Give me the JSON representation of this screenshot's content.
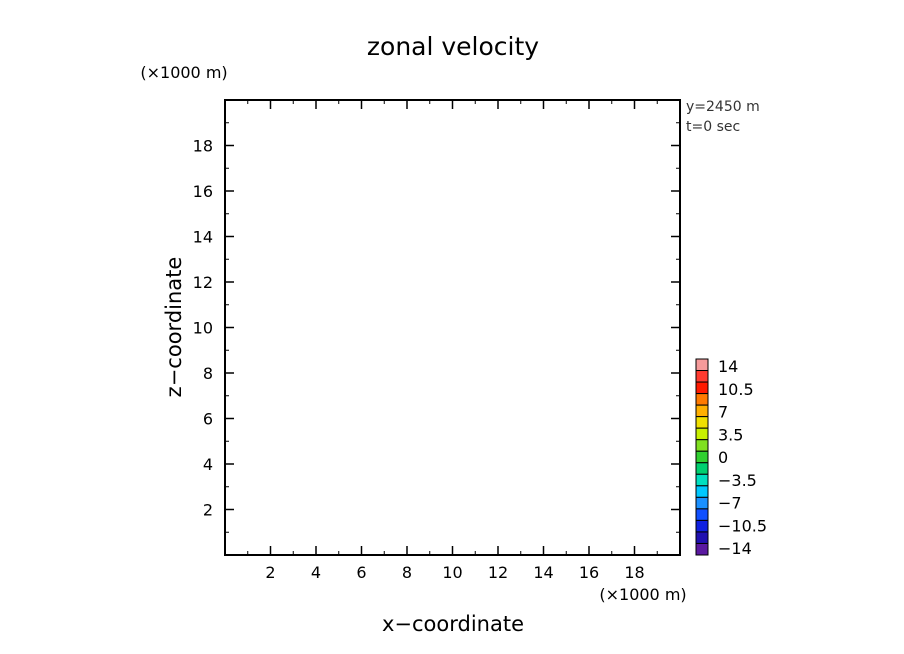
{
  "chart_data": {
    "type": "heatmap",
    "title": "zonal velocity",
    "xlabel": "x−coordinate",
    "ylabel": "z−coordinate",
    "x_unit": "(×1000 m)",
    "y_unit": "(×1000 m)",
    "xlim": [
      0,
      20
    ],
    "ylim": [
      0,
      20
    ],
    "xticks": [
      2,
      4,
      6,
      8,
      10,
      12,
      14,
      16,
      18
    ],
    "yticks": [
      2,
      4,
      6,
      8,
      10,
      12,
      14,
      16,
      18
    ],
    "annotations": [
      "y=2450 m",
      "t=0 sec"
    ],
    "field_values": [],
    "colorbar": {
      "labels": [
        "14",
        "10.5",
        "7",
        "3.5",
        "0",
        "−3.5",
        "−7",
        "−10.5",
        "−14"
      ],
      "colors": [
        "#f59a9a",
        "#ff3b30",
        "#ff1a00",
        "#ff7a00",
        "#ffb000",
        "#f0e000",
        "#c8f000",
        "#80e020",
        "#30d030",
        "#00d070",
        "#00e0c0",
        "#00c8ff",
        "#1a90ff",
        "#1050ff",
        "#1020e0",
        "#2010b0",
        "#5a18a0"
      ]
    }
  }
}
